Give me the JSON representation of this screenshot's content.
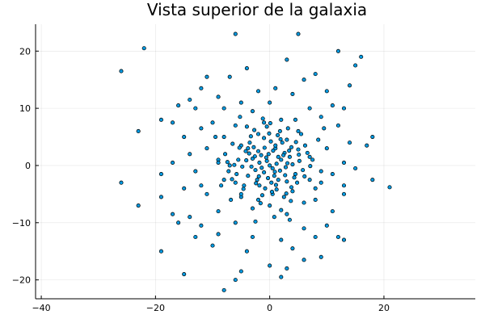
{
  "chart_data": {
    "type": "scatter",
    "title": "Vista superior de la galaxia",
    "xlabel": "",
    "ylabel": "",
    "xlim": [
      -41,
      36
    ],
    "ylim": [
      -23.3,
      24.7
    ],
    "x_ticks": [
      -40,
      -20,
      0,
      20
    ],
    "y_ticks": [
      -20,
      -10,
      0,
      10,
      20
    ],
    "x_tick_labels": [
      "−40",
      "−20",
      "0",
      "20"
    ],
    "y_tick_labels": [
      "−20",
      "−10",
      "0",
      "10",
      "20"
    ],
    "grid": true,
    "legend": "none",
    "marker_color": "#0099e0",
    "marker_edge_color": "#000000",
    "points_note": "estimated; dense cloud around (0,0)",
    "points": [
      [
        -6.0,
        23.0
      ],
      [
        5.0,
        23.0
      ],
      [
        -22.0,
        20.5
      ],
      [
        -26.0,
        16.5
      ],
      [
        12.0,
        20.0
      ],
      [
        16.0,
        19.0
      ],
      [
        3.0,
        18.5
      ],
      [
        15.0,
        17.5
      ],
      [
        -4.0,
        17.0
      ],
      [
        8.0,
        16.0
      ],
      [
        -11.0,
        15.5
      ],
      [
        -7.0,
        15.5
      ],
      [
        6.0,
        15.0
      ],
      [
        14.0,
        14.0
      ],
      [
        -12.0,
        13.5
      ],
      [
        -2.0,
        13.0
      ],
      [
        1.0,
        13.5
      ],
      [
        10.0,
        13.0
      ],
      [
        -14.0,
        11.5
      ],
      [
        -9.0,
        12.0
      ],
      [
        4.0,
        12.5
      ],
      [
        -5.0,
        11.0
      ],
      [
        11.0,
        10.5
      ],
      [
        -16.0,
        10.5
      ],
      [
        -13.0,
        10.0
      ],
      [
        13.0,
        10.0
      ],
      [
        -8.0,
        10.0
      ],
      [
        0.0,
        11.0
      ],
      [
        7.0,
        10.0
      ],
      [
        -3.0,
        9.5
      ],
      [
        -19.0,
        8.0
      ],
      [
        -17.0,
        7.5
      ],
      [
        -23.0,
        6.0
      ],
      [
        -10.0,
        7.5
      ],
      [
        -6.0,
        7.0
      ],
      [
        9.0,
        8.5
      ],
      [
        -12.0,
        6.5
      ],
      [
        2.0,
        8.0
      ],
      [
        12.0,
        7.0
      ],
      [
        -15.0,
        5.0
      ],
      [
        -8.0,
        5.0
      ],
      [
        5.0,
        6.0
      ],
      [
        -1.0,
        7.5
      ],
      [
        18.0,
        5.0
      ],
      [
        17.0,
        3.5
      ],
      [
        14.0,
        4.0
      ],
      [
        -14.0,
        2.0
      ],
      [
        10.0,
        3.0
      ],
      [
        -11.0,
        3.0
      ],
      [
        -5.0,
        3.5
      ],
      [
        3.0,
        4.5
      ],
      [
        -17.0,
        0.5
      ],
      [
        -9.0,
        1.0
      ],
      [
        13.0,
        0.5
      ],
      [
        7.0,
        1.5
      ],
      [
        -13.0,
        -1.0
      ],
      [
        15.0,
        -0.5
      ],
      [
        -19.0,
        -1.5
      ],
      [
        -2.0,
        2.5
      ],
      [
        1.0,
        3.0
      ],
      [
        -7.0,
        0.0
      ],
      [
        11.0,
        -1.5
      ],
      [
        -12.0,
        -3.5
      ],
      [
        -26.0,
        -3.0
      ],
      [
        -15.0,
        -4.0
      ],
      [
        13.0,
        -3.5
      ],
      [
        -8.0,
        -2.5
      ],
      [
        9.0,
        -3.0
      ],
      [
        18.0,
        -2.5
      ],
      [
        21.0,
        -3.8
      ],
      [
        -23.0,
        -7.0
      ],
      [
        -19.0,
        -5.5
      ],
      [
        -11.0,
        -5.0
      ],
      [
        -5.0,
        -5.5
      ],
      [
        8.0,
        -6.0
      ],
      [
        13.0,
        -5.0
      ],
      [
        -17.0,
        -8.5
      ],
      [
        -14.0,
        -9.0
      ],
      [
        -9.0,
        -8.0
      ],
      [
        3.0,
        -8.5
      ],
      [
        11.0,
        -8.0
      ],
      [
        -16.0,
        -10.0
      ],
      [
        -12.0,
        -10.5
      ],
      [
        -6.0,
        -10.0
      ],
      [
        6.0,
        -11.0
      ],
      [
        10.0,
        -10.5
      ],
      [
        -13.0,
        -12.5
      ],
      [
        -9.0,
        -12.0
      ],
      [
        -3.0,
        -12.5
      ],
      [
        2.0,
        -13.0
      ],
      [
        8.0,
        -12.5
      ],
      [
        12.0,
        -12.5
      ],
      [
        13.0,
        -13.0
      ],
      [
        -19.0,
        -15.0
      ],
      [
        -10.0,
        -14.0
      ],
      [
        -4.0,
        -15.0
      ],
      [
        4.0,
        -14.5
      ],
      [
        9.0,
        -16.0
      ],
      [
        -15.0,
        -19.0
      ],
      [
        -5.0,
        -18.5
      ],
      [
        0.0,
        -17.5
      ],
      [
        3.0,
        -18.0
      ],
      [
        6.0,
        -16.5
      ],
      [
        -6.0,
        -20.0
      ],
      [
        -8.0,
        -21.8
      ],
      [
        2.0,
        -19.5
      ],
      [
        0.0,
        0.0
      ],
      [
        0.5,
        -0.5
      ],
      [
        -0.5,
        0.8
      ],
      [
        1.2,
        0.3
      ],
      [
        -1.0,
        -1.2
      ],
      [
        0.8,
        -1.8
      ],
      [
        -1.8,
        0.5
      ],
      [
        2.0,
        1.0
      ],
      [
        -0.2,
        2.0
      ],
      [
        1.5,
        -2.5
      ],
      [
        -2.5,
        -0.8
      ],
      [
        2.8,
        -0.3
      ],
      [
        -1.5,
        1.8
      ],
      [
        0.3,
        -3.0
      ],
      [
        -3.0,
        1.2
      ],
      [
        3.5,
        1.5
      ],
      [
        -2.2,
        -2.5
      ],
      [
        1.0,
        3.5
      ],
      [
        -0.8,
        -4.0
      ],
      [
        3.0,
        -2.8
      ],
      [
        -3.8,
        -1.8
      ],
      [
        4.0,
        0.2
      ],
      [
        -4.2,
        2.5
      ],
      [
        2.2,
        4.0
      ],
      [
        -1.0,
        4.8
      ],
      [
        4.5,
        -1.5
      ],
      [
        -4.8,
        -0.2
      ],
      [
        0.5,
        -5.0
      ],
      [
        5.0,
        2.8
      ],
      [
        -3.5,
        4.0
      ],
      [
        2.5,
        -5.5
      ],
      [
        -5.5,
        1.0
      ],
      [
        5.8,
        -0.8
      ],
      [
        -2.0,
        -6.0
      ],
      [
        1.8,
        6.0
      ],
      [
        -6.0,
        -3.0
      ],
      [
        6.2,
        3.5
      ],
      [
        -0.5,
        6.8
      ],
      [
        4.0,
        -4.5
      ],
      [
        -5.0,
        -5.0
      ],
      [
        3.2,
        6.5
      ],
      [
        -6.5,
        3.8
      ],
      [
        7.0,
        -2.5
      ],
      [
        0.0,
        -7.0
      ],
      [
        -7.2,
        -1.0
      ],
      [
        5.5,
        5.5
      ],
      [
        -4.0,
        6.8
      ],
      [
        7.5,
        1.0
      ],
      [
        -3.0,
        -7.5
      ],
      [
        2.0,
        -7.8
      ],
      [
        -7.8,
        2.0
      ],
      [
        8.0,
        -4.0
      ],
      [
        6.0,
        -6.5
      ],
      [
        -6.8,
        -6.0
      ],
      [
        -1.2,
        8.2
      ],
      [
        8.5,
        4.5
      ],
      [
        -8.5,
        -3.5
      ],
      [
        4.5,
        8.0
      ],
      [
        -5.2,
        8.5
      ],
      [
        0.8,
        -9.0
      ],
      [
        -9.0,
        0.5
      ],
      [
        9.0,
        -1.0
      ],
      [
        3.5,
        -9.5
      ],
      [
        -2.5,
        -9.8
      ],
      [
        -9.5,
        5.0
      ],
      [
        9.5,
        6.5
      ],
      [
        -3.8,
        3.0
      ],
      [
        3.8,
        -3.8
      ],
      [
        1.5,
        1.5
      ],
      [
        -1.8,
        -3.5
      ],
      [
        2.6,
        2.2
      ],
      [
        -2.8,
        3.2
      ],
      [
        0.2,
        4.2
      ],
      [
        3.8,
        3.2
      ],
      [
        -4.5,
        -3.5
      ],
      [
        4.8,
        -3.0
      ],
      [
        1.2,
        -4.2
      ],
      [
        -2.0,
        5.5
      ],
      [
        5.2,
        0.8
      ],
      [
        -5.8,
        -1.5
      ],
      [
        -0.6,
        1.4
      ],
      [
        0.9,
        -1.1
      ],
      [
        -1.4,
        -0.4
      ],
      [
        1.8,
        -0.9
      ],
      [
        -0.3,
        -2.2
      ],
      [
        2.4,
        1.8
      ],
      [
        -2.6,
        1.6
      ],
      [
        0.6,
        2.6
      ],
      [
        -1.9,
        -1.9
      ],
      [
        3.1,
        0.4
      ],
      [
        -3.2,
        -0.2
      ],
      [
        1.1,
        -3.4
      ],
      [
        -0.9,
        3.1
      ],
      [
        2.7,
        -1.7
      ],
      [
        -2.4,
        -3.1
      ],
      [
        3.4,
        2.6
      ],
      [
        -3.6,
        2.1
      ],
      [
        0.4,
        -4.6
      ],
      [
        4.3,
        -2.1
      ],
      [
        -4.1,
        0.9
      ],
      [
        1.9,
        4.6
      ],
      [
        -1.3,
        -5.2
      ],
      [
        5.1,
        1.9
      ],
      [
        -5.3,
        3.1
      ],
      [
        2.9,
        -4.9
      ],
      [
        -3.3,
        5.1
      ],
      [
        -0.1,
        5.6
      ],
      [
        6.1,
        -1.9
      ],
      [
        -6.2,
        0.1
      ],
      [
        4.6,
        4.1
      ],
      [
        -4.6,
        -4.1
      ],
      [
        1.4,
        5.3
      ],
      [
        -1.6,
        -6.6
      ],
      [
        6.6,
        2.2
      ],
      [
        -2.7,
        6.2
      ],
      [
        3.7,
        -6.2
      ],
      [
        -6.6,
        -2.4
      ],
      [
        7.1,
        -0.1
      ],
      [
        0.1,
        7.4
      ],
      [
        -7.4,
        0.6
      ]
    ]
  }
}
